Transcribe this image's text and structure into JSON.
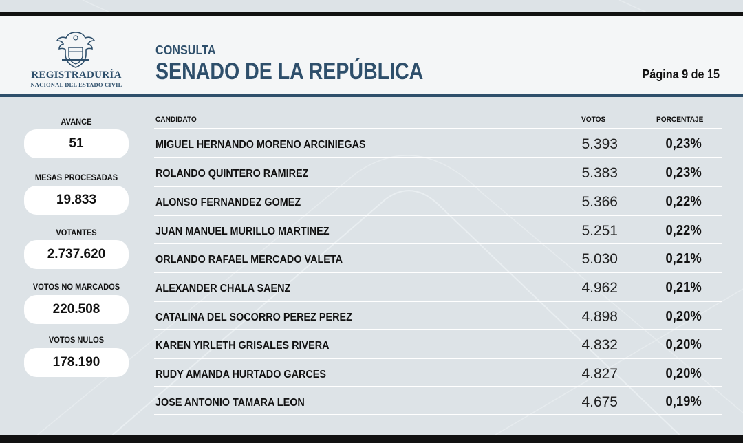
{
  "header": {
    "logo_name": "REGISTRADURÍA",
    "logo_subtitle": "NACIONAL DEL ESTADO CIVIL",
    "subtitle": "CONSULTA",
    "title": "SENADO DE LA REPÚBLICA",
    "page_indicator": "Página 9 de 15"
  },
  "stats": [
    {
      "label": "AVANCE",
      "value": "51"
    },
    {
      "label": "MESAS PROCESADAS",
      "value": "19.833"
    },
    {
      "label": "VOTANTES",
      "value": "2.737.620"
    },
    {
      "label": "VOTOS NO MARCADOS",
      "value": "220.508"
    },
    {
      "label": "VOTOS NULOS",
      "value": "178.190"
    }
  ],
  "table": {
    "columns": {
      "candidate": "CANDIDATO",
      "votes": "VOTOS",
      "percentage": "PORCENTAJE"
    },
    "rows": [
      {
        "name": "MIGUEL HERNANDO MORENO ARCINIEGAS",
        "votes": "5.393",
        "pct": "0,23%"
      },
      {
        "name": "ROLANDO QUINTERO RAMIREZ",
        "votes": "5.383",
        "pct": "0,23%"
      },
      {
        "name": "ALONSO FERNANDEZ GOMEZ",
        "votes": "5.366",
        "pct": "0,22%"
      },
      {
        "name": "JUAN MANUEL MURILLO MARTINEZ",
        "votes": "5.251",
        "pct": "0,22%"
      },
      {
        "name": "ORLANDO RAFAEL MERCADO VALETA",
        "votes": "5.030",
        "pct": "0,21%"
      },
      {
        "name": "ALEXANDER CHALA SAENZ",
        "votes": "4.962",
        "pct": "0,21%"
      },
      {
        "name": "CATALINA DEL SOCORRO PEREZ PEREZ",
        "votes": "4.898",
        "pct": "0,20%"
      },
      {
        "name": "KAREN YIRLETH GRISALES RIVERA",
        "votes": "4.832",
        "pct": "0,20%"
      },
      {
        "name": "RUDY AMANDA HURTADO GARCES",
        "votes": "4.827",
        "pct": "0,20%"
      },
      {
        "name": "JOSE ANTONIO TAMARA LEON",
        "votes": "4.675",
        "pct": "0,19%"
      }
    ]
  },
  "colors": {
    "brand": "#2e4f6b",
    "background": "#dde3e7",
    "panel": "#ffffff"
  }
}
